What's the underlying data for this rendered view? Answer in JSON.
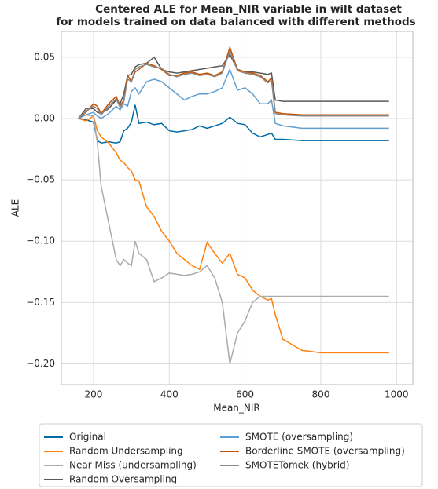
{
  "chart_data": {
    "type": "line",
    "title": [
      "Centered ALE for Mean_NIR variable in wilt dataset",
      "for models trained on data balanced with different methods"
    ],
    "xlabel": "Mean_NIR",
    "ylabel": "ALE",
    "x": [
      160,
      180,
      200,
      210,
      220,
      240,
      260,
      270,
      280,
      290,
      300,
      310,
      320,
      340,
      360,
      380,
      400,
      420,
      440,
      460,
      480,
      500,
      520,
      540,
      560,
      580,
      600,
      620,
      640,
      660,
      670,
      680,
      700,
      750,
      800,
      900,
      980
    ],
    "series": [
      {
        "name": "Original",
        "color": "#006ba4",
        "values": [
          0,
          -0.001,
          -0.003,
          -0.018,
          -0.02,
          -0.019,
          -0.02,
          -0.019,
          -0.01,
          -0.008,
          -0.003,
          0.011,
          -0.004,
          -0.003,
          -0.005,
          -0.004,
          -0.01,
          -0.011,
          -0.01,
          -0.009,
          -0.006,
          -0.008,
          -0.006,
          -0.004,
          0.001,
          -0.004,
          -0.005,
          -0.012,
          -0.015,
          -0.013,
          -0.012,
          -0.017,
          -0.017,
          -0.018,
          -0.018,
          -0.018,
          -0.018
        ]
      },
      {
        "name": "Random Undersampling",
        "color": "#ff800e",
        "values": [
          0,
          -0.002,
          0.002,
          -0.01,
          -0.015,
          -0.02,
          -0.028,
          -0.034,
          -0.036,
          -0.04,
          -0.043,
          -0.05,
          -0.051,
          -0.072,
          -0.08,
          -0.092,
          -0.1,
          -0.11,
          -0.115,
          -0.12,
          -0.123,
          -0.101,
          -0.11,
          -0.118,
          -0.11,
          -0.127,
          -0.13,
          -0.14,
          -0.145,
          -0.148,
          -0.147,
          -0.16,
          -0.18,
          -0.189,
          -0.191,
          -0.191,
          -0.191
        ]
      },
      {
        "name": "Near Miss (undersampling)",
        "color": "#ababab",
        "values": [
          0,
          0.003,
          0.002,
          -0.02,
          -0.055,
          -0.085,
          -0.115,
          -0.12,
          -0.115,
          -0.118,
          -0.12,
          -0.1,
          -0.11,
          -0.115,
          -0.133,
          -0.13,
          -0.126,
          -0.127,
          -0.128,
          -0.127,
          -0.125,
          -0.12,
          -0.13,
          -0.15,
          -0.2,
          -0.175,
          -0.165,
          -0.15,
          -0.145,
          -0.145,
          -0.145,
          -0.145,
          -0.145,
          -0.145,
          -0.145,
          -0.145,
          -0.145
        ]
      },
      {
        "name": "Random Oversampling",
        "color": "#595959",
        "values": [
          0,
          0.008,
          0.008,
          0.005,
          0.004,
          0.008,
          0.015,
          0.012,
          0.02,
          0.035,
          0.036,
          0.042,
          0.044,
          0.045,
          0.05,
          0.04,
          0.038,
          0.037,
          0.038,
          0.039,
          0.04,
          0.041,
          0.042,
          0.043,
          0.052,
          0.04,
          0.038,
          0.038,
          0.037,
          0.036,
          0.037,
          0.015,
          0.014,
          0.014,
          0.014,
          0.014,
          0.014
        ]
      },
      {
        "name": "SMOTE (oversampling)",
        "color": "#5f9ed1",
        "values": [
          0,
          0.003,
          0.005,
          0.002,
          0,
          0.004,
          0.01,
          0.007,
          0.012,
          0.01,
          0.022,
          0.025,
          0.02,
          0.03,
          0.032,
          0.03,
          0.025,
          0.02,
          0.015,
          0.018,
          0.02,
          0.02,
          0.022,
          0.025,
          0.04,
          0.023,
          0.025,
          0.02,
          0.012,
          0.012,
          0.015,
          -0.004,
          -0.006,
          -0.008,
          -0.008,
          -0.008,
          -0.008
        ]
      },
      {
        "name": "Borderline SMOTE (oversampling)",
        "color": "#c85200",
        "values": [
          0,
          0.005,
          0.012,
          0.01,
          0.004,
          0.012,
          0.018,
          0.01,
          0.015,
          0.035,
          0.03,
          0.038,
          0.04,
          0.045,
          0.043,
          0.04,
          0.035,
          0.035,
          0.037,
          0.038,
          0.036,
          0.037,
          0.035,
          0.038,
          0.058,
          0.04,
          0.038,
          0.037,
          0.035,
          0.03,
          0.033,
          0.005,
          0.004,
          0.003,
          0.003,
          0.003,
          0.003
        ]
      },
      {
        "name": "SMOTETomek (hybrid)",
        "color": "#898989",
        "values": [
          0,
          0.006,
          0.01,
          0.008,
          0.003,
          0.01,
          0.016,
          0.009,
          0.014,
          0.032,
          0.03,
          0.04,
          0.042,
          0.044,
          0.042,
          0.041,
          0.036,
          0.034,
          0.036,
          0.037,
          0.035,
          0.036,
          0.034,
          0.037,
          0.055,
          0.039,
          0.037,
          0.036,
          0.034,
          0.029,
          0.031,
          0.004,
          0.003,
          0.002,
          0.002,
          0.002,
          0.002
        ]
      }
    ],
    "xlim": [
      115,
      1043
    ],
    "ylim": [
      -0.217,
      0.071
    ],
    "xticks": [
      200,
      400,
      600,
      800,
      1000
    ],
    "yticks": [
      0.05,
      {
        "value": 0,
        "label": "0.00"
      },
      {
        "value": -0.05,
        "label": "−0.05"
      },
      {
        "value": -0.1,
        "label": "−0.10"
      },
      {
        "value": -0.15,
        "label": "−0.15"
      },
      {
        "value": -0.2,
        "label": "−0.20"
      }
    ],
    "grid": true,
    "legend": "below"
  }
}
